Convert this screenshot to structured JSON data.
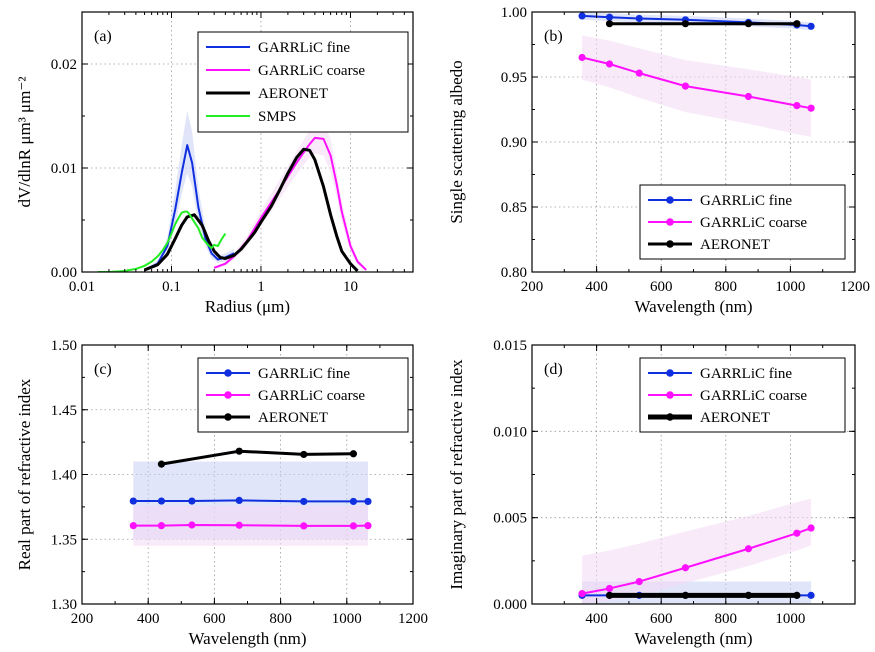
{
  "colors": {
    "fine": "#1030e0",
    "coarse": "#ff10ff",
    "aeronet": "#000000",
    "smps": "#22ee22",
    "fine_band": "#c8d0f4",
    "coarse_band": "#f4d8f4",
    "grid": "#9a9a9a"
  },
  "chart_data": [
    {
      "id": "a",
      "type": "line",
      "panel_label": "(a)",
      "xlabel": "Radius (μm)",
      "ylabel": "dV/dlnR μm³ μm⁻²",
      "xscale": "log",
      "xlim": [
        0.01,
        50
      ],
      "ylim": [
        0,
        0.025
      ],
      "xticks": [
        0.01,
        0.1,
        1,
        10
      ],
      "xtick_labels": [
        "0.01",
        "0.1",
        "1",
        "10"
      ],
      "yticks": [
        0,
        0.01,
        0.02
      ],
      "ytick_labels": [
        "0.00",
        "0.01",
        "0.02"
      ],
      "grid": true,
      "legend_position": "top-right",
      "series": [
        {
          "name": "GARRLiC fine",
          "color_key": "fine",
          "markers": false,
          "width": 2,
          "x": [
            0.05,
            0.07,
            0.09,
            0.11,
            0.13,
            0.15,
            0.17,
            0.2,
            0.24,
            0.28,
            0.33,
            0.4,
            0.5
          ],
          "y": [
            0.0002,
            0.0008,
            0.0025,
            0.006,
            0.0095,
            0.0122,
            0.0105,
            0.0062,
            0.0032,
            0.0018,
            0.0012,
            0.0014,
            0.0018
          ],
          "band": {
            "color_key": "fine_band",
            "lo": [
              0.0001,
              0.0005,
              0.0018,
              0.0045,
              0.0075,
              0.0095,
              0.0082,
              0.0048,
              0.0025,
              0.0013,
              0.0009,
              0.001,
              0.0014
            ],
            "hi": [
              0.0003,
              0.0011,
              0.0033,
              0.0078,
              0.0122,
              0.0155,
              0.0135,
              0.008,
              0.0042,
              0.0025,
              0.0016,
              0.0018,
              0.0022
            ]
          }
        },
        {
          "name": "GARRLiC coarse",
          "color_key": "coarse",
          "markers": false,
          "width": 2,
          "x": [
            0.3,
            0.4,
            0.5,
            0.7,
            1.0,
            1.5,
            2.0,
            2.5,
            3.0,
            3.5,
            4.0,
            5.0,
            6.0,
            7.0,
            8.0,
            10.0,
            12.0,
            15.0
          ],
          "y": [
            0.0004,
            0.0008,
            0.0015,
            0.003,
            0.0052,
            0.0075,
            0.0092,
            0.0105,
            0.0115,
            0.0123,
            0.0129,
            0.0128,
            0.0112,
            0.0085,
            0.0058,
            0.0025,
            0.001,
            0.0002
          ],
          "band": {
            "color_key": "coarse_band",
            "lo": [
              0.0003,
              0.0006,
              0.0012,
              0.0025,
              0.0045,
              0.0066,
              0.0082,
              0.0094,
              0.0103,
              0.011,
              0.0114,
              0.0112,
              0.0096,
              0.0072,
              0.0048,
              0.0019,
              0.0007,
              0.0001
            ],
            "hi": [
              0.0005,
              0.001,
              0.0018,
              0.0035,
              0.0059,
              0.0084,
              0.0102,
              0.0116,
              0.0127,
              0.0136,
              0.0144,
              0.0144,
              0.0128,
              0.0098,
              0.0068,
              0.0031,
              0.0013,
              0.0003
            ]
          }
        },
        {
          "name": "AERONET",
          "color_key": "aeronet",
          "markers": false,
          "width": 3,
          "x": [
            0.05,
            0.07,
            0.09,
            0.11,
            0.13,
            0.15,
            0.18,
            0.22,
            0.26,
            0.3,
            0.35,
            0.4,
            0.5,
            0.6,
            0.7,
            0.85,
            1.0,
            1.3,
            1.6,
            2.0,
            2.5,
            3.0,
            3.5,
            4.0,
            5.0,
            6.0,
            7.0,
            8.0,
            10.0,
            12.0
          ],
          "y": [
            0.0002,
            0.0007,
            0.0017,
            0.0032,
            0.0045,
            0.0053,
            0.0055,
            0.0045,
            0.003,
            0.002,
            0.0014,
            0.0013,
            0.0016,
            0.0022,
            0.0029,
            0.0038,
            0.0048,
            0.0063,
            0.0078,
            0.0095,
            0.011,
            0.0118,
            0.0117,
            0.0108,
            0.0082,
            0.0055,
            0.0035,
            0.002,
            0.0008,
            0.0001
          ]
        },
        {
          "name": "SMPS",
          "color_key": "smps",
          "markers": false,
          "width": 2,
          "x": [
            0.015,
            0.02,
            0.03,
            0.04,
            0.05,
            0.06,
            0.07,
            0.08,
            0.09,
            0.1,
            0.11,
            0.12,
            0.13,
            0.14,
            0.15,
            0.16,
            0.18,
            0.2,
            0.22,
            0.25,
            0.28,
            0.3,
            0.33,
            0.36,
            0.4
          ],
          "y": [
            0.0,
            0.0,
            0.0001,
            0.0003,
            0.0006,
            0.001,
            0.0015,
            0.0021,
            0.0028,
            0.0037,
            0.0046,
            0.0052,
            0.0057,
            0.0058,
            0.0058,
            0.0055,
            0.0048,
            0.0042,
            0.0033,
            0.0027,
            0.0023,
            0.0026,
            0.0025,
            0.0031,
            0.0037
          ]
        }
      ]
    },
    {
      "id": "b",
      "type": "line",
      "panel_label": "(b)",
      "xlabel": "Wavelength (nm)",
      "ylabel": "Single scattering albedo",
      "xlim": [
        200,
        1200
      ],
      "ylim": [
        0.8,
        1.0
      ],
      "xticks": [
        200,
        400,
        600,
        800,
        1000,
        1200
      ],
      "xtick_labels": [
        "200",
        "400",
        "600",
        "800",
        "1000",
        "1200"
      ],
      "yticks": [
        0.8,
        0.85,
        0.9,
        0.95,
        1.0
      ],
      "ytick_labels": [
        "0.80",
        "0.85",
        "0.90",
        "0.95",
        "1.00"
      ],
      "grid": true,
      "legend_position": "bottom-right",
      "series": [
        {
          "name": "GARRLiC fine",
          "color_key": "fine",
          "markers": true,
          "width": 2,
          "x": [
            355,
            440,
            532,
            675,
            870,
            1020,
            1064
          ],
          "y": [
            0.997,
            0.996,
            0.995,
            0.994,
            0.992,
            0.99,
            0.989
          ],
          "band": {
            "color_key": "fine_band",
            "lo": [
              0.994,
              0.993,
              0.992,
              0.991,
              0.989,
              0.987,
              0.986
            ],
            "hi": [
              1.0,
              0.999,
              0.998,
              0.997,
              0.995,
              0.993,
              0.992
            ]
          }
        },
        {
          "name": "GARRLiC coarse",
          "color_key": "coarse",
          "markers": true,
          "width": 2,
          "x": [
            355,
            440,
            532,
            675,
            870,
            1020,
            1064
          ],
          "y": [
            0.965,
            0.96,
            0.953,
            0.943,
            0.935,
            0.928,
            0.926
          ],
          "band": {
            "color_key": "coarse_band",
            "lo": [
              0.948,
              0.942,
              0.934,
              0.923,
              0.914,
              0.906,
              0.904
            ],
            "hi": [
              0.982,
              0.978,
              0.972,
              0.963,
              0.956,
              0.95,
              0.948
            ]
          }
        },
        {
          "name": "AERONET",
          "color_key": "aeronet",
          "markers": true,
          "width": 3,
          "x": [
            440,
            675,
            870,
            1020
          ],
          "y": [
            0.991,
            0.991,
            0.991,
            0.991
          ]
        }
      ]
    },
    {
      "id": "c",
      "type": "line",
      "panel_label": "(c)",
      "xlabel": "Wavelength (nm)",
      "ylabel": "Real part of refractive index",
      "xlim": [
        200,
        1200
      ],
      "ylim": [
        1.3,
        1.5
      ],
      "xticks": [
        200,
        400,
        600,
        800,
        1000,
        1200
      ],
      "xtick_labels": [
        "200",
        "400",
        "600",
        "800",
        "1000",
        "1200"
      ],
      "yticks": [
        1.3,
        1.35,
        1.4,
        1.45,
        1.5
      ],
      "ytick_labels": [
        "1.30",
        "1.35",
        "1.40",
        "1.45",
        "1.50"
      ],
      "grid": true,
      "legend_position": "top-right",
      "series": [
        {
          "name": "GARRLiC fine",
          "color_key": "fine",
          "markers": true,
          "width": 2,
          "x": [
            355,
            440,
            532,
            675,
            870,
            1020,
            1064
          ],
          "y": [
            1.3795,
            1.3795,
            1.3795,
            1.38,
            1.3792,
            1.3792,
            1.3792
          ],
          "band": {
            "color_key": "fine_band",
            "lo": [
              1.35,
              1.35,
              1.35,
              1.35,
              1.35,
              1.35,
              1.35
            ],
            "hi": [
              1.41,
              1.41,
              1.41,
              1.41,
              1.41,
              1.41,
              1.41
            ]
          }
        },
        {
          "name": "GARRLiC coarse",
          "color_key": "coarse",
          "markers": true,
          "width": 2,
          "x": [
            355,
            440,
            532,
            675,
            870,
            1020,
            1064
          ],
          "y": [
            1.3605,
            1.3605,
            1.361,
            1.3608,
            1.3603,
            1.3603,
            1.3605
          ],
          "band": {
            "color_key": "coarse_band",
            "lo": [
              1.345,
              1.345,
              1.345,
              1.345,
              1.345,
              1.345,
              1.345
            ],
            "hi": [
              1.376,
              1.376,
              1.376,
              1.376,
              1.376,
              1.376,
              1.376
            ]
          }
        },
        {
          "name": "AERONET",
          "color_key": "aeronet",
          "markers": true,
          "width": 3,
          "x": [
            440,
            675,
            870,
            1020
          ],
          "y": [
            1.408,
            1.418,
            1.4155,
            1.416
          ]
        }
      ]
    },
    {
      "id": "d",
      "type": "line",
      "panel_label": "(d)",
      "xlabel": "Wavelength (nm)",
      "ylabel": "Imaginary part of refractive index",
      "xlim": [
        200,
        1200
      ],
      "ylim": [
        0,
        0.015
      ],
      "xticks": [
        400,
        600,
        800,
        1000
      ],
      "xtick_labels": [
        "400",
        "600",
        "800",
        "1000"
      ],
      "yticks": [
        0,
        0.005,
        0.01,
        0.015
      ],
      "ytick_labels": [
        "0.000",
        "0.005",
        "0.010",
        "0.015"
      ],
      "grid": true,
      "legend_position": "top-right",
      "series": [
        {
          "name": "GARRLiC fine",
          "color_key": "fine",
          "markers": true,
          "width": 2,
          "x": [
            355,
            440,
            532,
            675,
            870,
            1020,
            1064
          ],
          "y": [
            0.0005,
            0.0005,
            0.0005,
            0.0005,
            0.0005,
            0.0005,
            0.0005
          ],
          "band": {
            "color_key": "fine_band",
            "lo": [
              0.0,
              0.0,
              0.0,
              0.0,
              0.0,
              0.0,
              0.0
            ],
            "hi": [
              0.0013,
              0.0013,
              0.0013,
              0.0013,
              0.0013,
              0.0013,
              0.0013
            ]
          }
        },
        {
          "name": "GARRLiC coarse",
          "color_key": "coarse",
          "markers": true,
          "width": 2,
          "x": [
            355,
            440,
            532,
            675,
            870,
            1020,
            1064
          ],
          "y": [
            0.0006,
            0.0009,
            0.0013,
            0.0021,
            0.0032,
            0.0041,
            0.0044
          ],
          "band": {
            "color_key": "coarse_band",
            "lo": [
              0.0,
              0.0002,
              0.0005,
              0.0012,
              0.0022,
              0.0031,
              0.0034
            ],
            "hi": [
              0.0028,
              0.0031,
              0.0035,
              0.0042,
              0.0051,
              0.0059,
              0.0061
            ]
          }
        },
        {
          "name": "AERONET",
          "color_key": "aeronet",
          "markers": true,
          "width": 5,
          "x": [
            440,
            675,
            870,
            1020
          ],
          "y": [
            0.0005,
            0.0005,
            0.0005,
            0.0005
          ]
        }
      ]
    }
  ]
}
